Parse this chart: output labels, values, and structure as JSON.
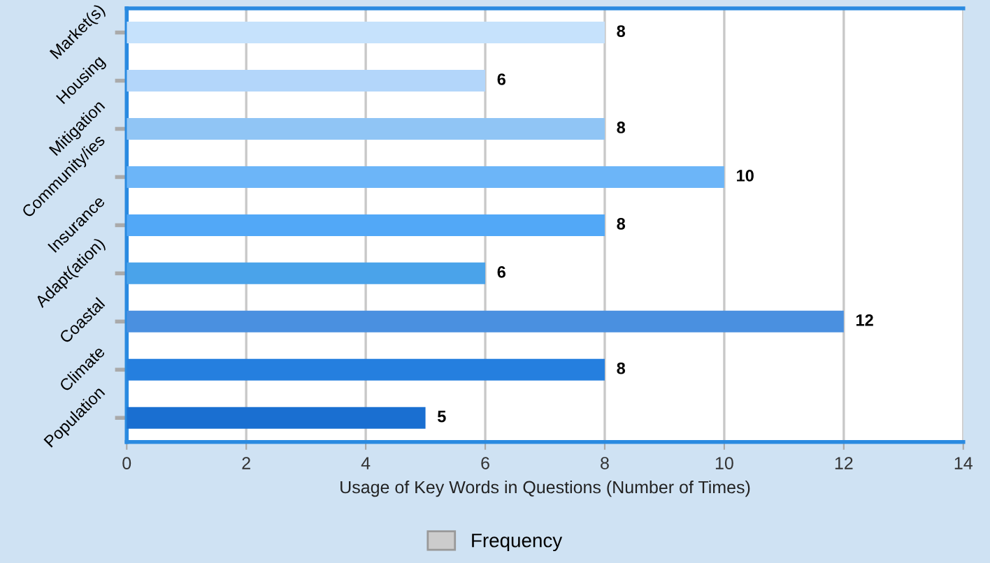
{
  "chart_data": {
    "type": "bar",
    "orientation": "horizontal",
    "categories": [
      "Market(s)",
      "Housing",
      "Mitigation",
      "Community/ies",
      "Insurance",
      "Adapt(ation)",
      "Coastal",
      "Climate",
      "Population"
    ],
    "series": [
      {
        "name": "Frequency",
        "color": "#cccccc",
        "colors": [
          "#c6e2fc",
          "#b3d6fa",
          "#90c5f5",
          "#6cb5f8",
          "#52a8f7",
          "#4aa3ea",
          "#4a90e0",
          "#257fdf",
          "#1a6fd1"
        ],
        "values": [
          8,
          6,
          8,
          10,
          8,
          6,
          12,
          8,
          5
        ]
      }
    ],
    "xlabel": "Usage of Key Words in Questions (Number of Times)",
    "xlim": [
      0,
      14
    ],
    "xticks": [
      0,
      2,
      4,
      6,
      8,
      10,
      12,
      14
    ],
    "grid": "x",
    "legend": "bottom",
    "data_labels": true
  }
}
